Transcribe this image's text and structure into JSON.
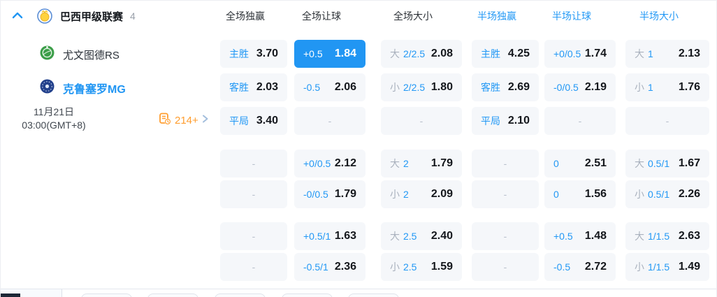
{
  "header": {
    "league_title": "巴西甲级联赛",
    "match_count": "4",
    "collapse_icon": "chevron-up",
    "league_icon": "league-badge",
    "columns": [
      {
        "label": "全场独赢",
        "accent": false
      },
      {
        "label": "全场让球",
        "accent": false
      },
      {
        "label": "全场大小",
        "accent": false
      },
      {
        "label": "半场独赢",
        "accent": true
      },
      {
        "label": "半场让球",
        "accent": true
      },
      {
        "label": "半场大小",
        "accent": true
      }
    ]
  },
  "match": {
    "home_team": "尤文图德RS",
    "away_team": "克鲁塞罗MG",
    "home_badge_icon": "green-club-badge",
    "away_badge_icon": "navy-club-badge",
    "date": "11月21日",
    "time": "03:00(GMT+8)",
    "extra_markets": "214+",
    "extra_markets_icon": "odds-list-clock",
    "more_icon": "chevron-right"
  },
  "ui": {
    "dash": "-"
  },
  "colors": {
    "accent_blue": "#2196f3",
    "highlight_cell_bg": "#2196f3",
    "odds_value_text": "#14171c",
    "muted_gray": "#a9b1bd",
    "cell_bg": "#f5f7fa",
    "orange": "#ff9d2e"
  },
  "odds_rows": [
    [
      {
        "type": "win",
        "line": "主胜",
        "value": "3.70"
      },
      {
        "type": "hcp",
        "line": "+0.5",
        "value": "1.84",
        "highlight": true
      },
      {
        "type": "ou",
        "prefix": "大",
        "line": "2/2.5",
        "value": "2.08"
      },
      {
        "type": "win",
        "line": "主胜",
        "value": "4.25"
      },
      {
        "type": "hcp",
        "line": "+0/0.5",
        "value": "1.74"
      },
      {
        "type": "ou",
        "prefix": "大",
        "line": "1",
        "value": "2.13"
      }
    ],
    [
      {
        "type": "win",
        "line": "客胜",
        "value": "2.03"
      },
      {
        "type": "hcp",
        "line": "-0.5",
        "value": "2.06"
      },
      {
        "type": "ou",
        "prefix": "小",
        "line": "2/2.5",
        "value": "1.80"
      },
      {
        "type": "win",
        "line": "客胜",
        "value": "2.69"
      },
      {
        "type": "hcp",
        "line": "-0/0.5",
        "value": "2.19"
      },
      {
        "type": "ou",
        "prefix": "小",
        "line": "1",
        "value": "1.76"
      }
    ],
    [
      {
        "type": "win",
        "line": "平局",
        "value": "3.40"
      },
      {
        "type": "dash"
      },
      {
        "type": "dash"
      },
      {
        "type": "win",
        "line": "平局",
        "value": "2.10"
      },
      {
        "type": "dash"
      },
      {
        "type": "dash"
      }
    ],
    [
      {
        "type": "dash"
      },
      {
        "type": "hcp",
        "line": "+0/0.5",
        "value": "2.12"
      },
      {
        "type": "ou",
        "prefix": "大",
        "line": "2",
        "value": "1.79"
      },
      {
        "type": "dash"
      },
      {
        "type": "hcp",
        "line": "0",
        "value": "2.51"
      },
      {
        "type": "ou",
        "prefix": "大",
        "line": "0.5/1",
        "value": "1.67"
      }
    ],
    [
      {
        "type": "dash"
      },
      {
        "type": "hcp",
        "line": "-0/0.5",
        "value": "1.79"
      },
      {
        "type": "ou",
        "prefix": "小",
        "line": "2",
        "value": "2.09"
      },
      {
        "type": "dash"
      },
      {
        "type": "hcp",
        "line": "0",
        "value": "1.56"
      },
      {
        "type": "ou",
        "prefix": "小",
        "line": "0.5/1",
        "value": "2.26"
      }
    ],
    [
      {
        "type": "dash"
      },
      {
        "type": "hcp",
        "line": "+0.5/1",
        "value": "1.63"
      },
      {
        "type": "ou",
        "prefix": "大",
        "line": "2.5",
        "value": "2.40"
      },
      {
        "type": "dash"
      },
      {
        "type": "hcp",
        "line": "+0.5",
        "value": "1.48"
      },
      {
        "type": "ou",
        "prefix": "大",
        "line": "1/1.5",
        "value": "2.63"
      }
    ],
    [
      {
        "type": "dash"
      },
      {
        "type": "hcp",
        "line": "-0.5/1",
        "value": "2.36"
      },
      {
        "type": "ou",
        "prefix": "小",
        "line": "2.5",
        "value": "1.59"
      },
      {
        "type": "dash"
      },
      {
        "type": "hcp",
        "line": "-0.5",
        "value": "2.72"
      },
      {
        "type": "ou",
        "prefix": "小",
        "line": "1/1.5",
        "value": "1.49"
      }
    ]
  ]
}
